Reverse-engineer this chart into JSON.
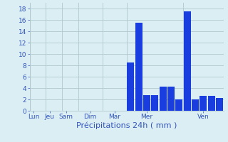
{
  "title": "",
  "xlabel": "Précipitations 24h ( mm )",
  "ylabel": "",
  "background_color": "#daeef3",
  "bar_color": "#1a3de0",
  "grid_color": "#b0c8cc",
  "ylim": [
    0,
    19
  ],
  "yticks": [
    0,
    2,
    4,
    6,
    8,
    10,
    12,
    14,
    16,
    18
  ],
  "x_labels": [
    "Lun",
    "Jeu",
    "Sam",
    "Dim",
    "Mar",
    "Mer",
    "Ven"
  ],
  "num_bars": 24,
  "bar_values": [
    0,
    0,
    0,
    0,
    0,
    0,
    0,
    0,
    0,
    0,
    0,
    0,
    8.5,
    15.5,
    2.7,
    2.7,
    4.2,
    4.2,
    2.0,
    17.5,
    2.0,
    2.6,
    2.6,
    2.2
  ],
  "xlabel_fontsize": 8,
  "tick_fontsize": 6.5,
  "label_color": "#3355bb"
}
